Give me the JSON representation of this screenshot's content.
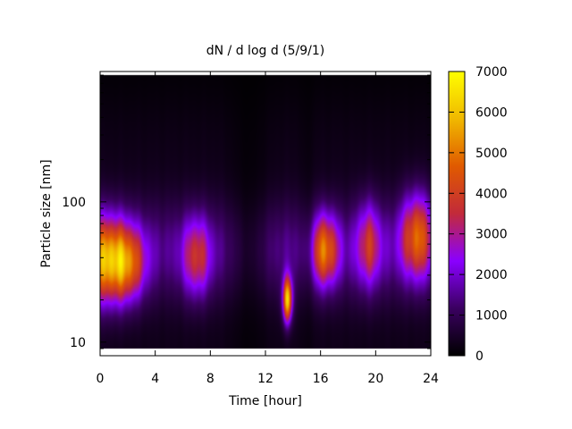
{
  "chart_data": {
    "type": "heatmap",
    "title": "dN / d log d (5/9/1)",
    "xlabel": "Time [hour]",
    "ylabel": "Particle size [nm]",
    "xlim": [
      0,
      24
    ],
    "ylim": [
      8,
      850
    ],
    "y_scale": "log",
    "x_ticks": [
      0,
      4,
      8,
      12,
      16,
      20,
      24
    ],
    "y_ticks": [
      10,
      100
    ],
    "colorbar": {
      "range": [
        0,
        7000
      ],
      "ticks": [
        0,
        1000,
        2000,
        3000,
        4000,
        5000,
        6000,
        7000
      ],
      "colormap": "black-purple-red-yellow",
      "stops": [
        "#000000",
        "#3a0060",
        "#8a00ff",
        "#c22a3a",
        "#e05a00",
        "#f0b800",
        "#ffff00"
      ]
    },
    "grid": false,
    "legend": "colorbar-right",
    "data_extent": {
      "y_min": 9,
      "y_max": 800
    },
    "low_baseline": 300,
    "size_decay": 0.55,
    "size_width": 0.35,
    "size_base": 1300,
    "hot_spots": [
      {
        "t": 0.3,
        "d": 38,
        "value": 4300,
        "t_width": 1.6,
        "d_width": 0.3
      },
      {
        "t": 2.0,
        "d": 36,
        "value": 3400,
        "t_width": 1.3,
        "d_width": 0.26
      },
      {
        "t": 7.0,
        "d": 40,
        "value": 2600,
        "t_width": 1.0,
        "d_width": 0.28
      },
      {
        "t": 13.6,
        "d": 20,
        "value": 5800,
        "t_width": 0.35,
        "d_width": 0.16
      },
      {
        "t": 16.3,
        "d": 45,
        "value": 3900,
        "t_width": 1.0,
        "d_width": 0.25
      },
      {
        "t": 19.5,
        "d": 50,
        "value": 2600,
        "t_width": 0.9,
        "d_width": 0.3
      },
      {
        "t": 23.0,
        "d": 58,
        "value": 3700,
        "t_width": 1.2,
        "d_width": 0.3
      }
    ],
    "quiet_periods": [
      {
        "t": 10.8,
        "t_width": 1.4,
        "factor": 0.35
      },
      {
        "t": 15.0,
        "t_width": 0.5,
        "factor": 0.6
      }
    ]
  }
}
